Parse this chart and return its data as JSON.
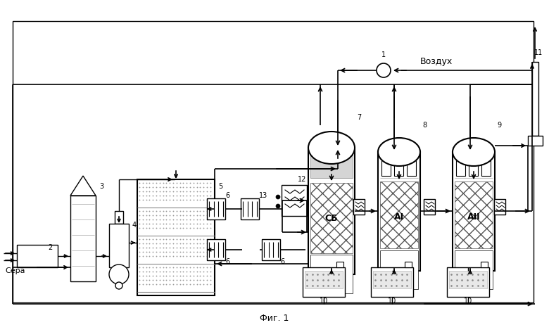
{
  "bg": "#ffffff",
  "lc": "#000000",
  "labels": {
    "sera": "Сера",
    "vozduh": "Воздух",
    "fig1": "Фиг. 1",
    "n1": "1",
    "n2": "2",
    "n3": "3",
    "n4": "4",
    "n5": "5",
    "n6a": "6",
    "n6b": "6",
    "n6c": "6",
    "n6d": "6",
    "n7": "7",
    "n8": "8",
    "n9": "9",
    "n10a": "10",
    "n10b": "10",
    "n10c": "10",
    "n11": "11",
    "n12": "12",
    "n13": "13",
    "sb": "СБ",
    "ai": "АI",
    "aii": "АII"
  }
}
